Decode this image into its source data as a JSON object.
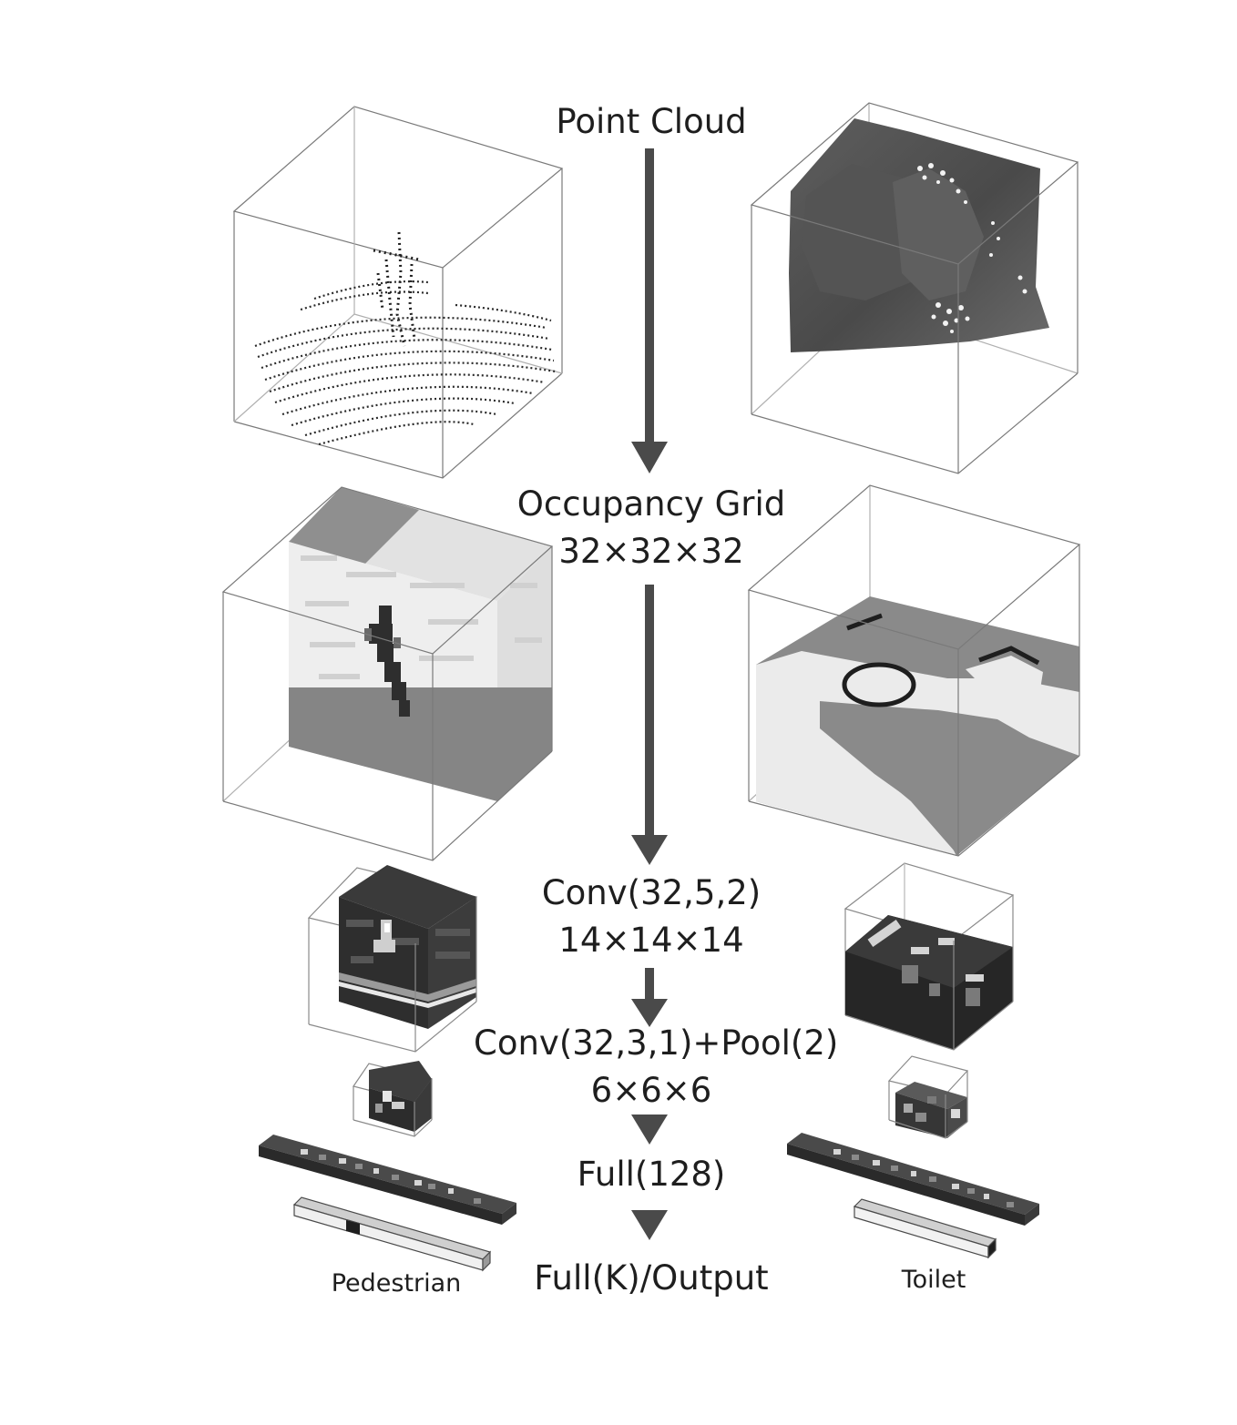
{
  "stages": [
    {
      "id": "point_cloud",
      "lines": [
        "Point Cloud"
      ]
    },
    {
      "id": "occupancy",
      "lines": [
        "Occupancy Grid",
        "32×32×32"
      ]
    },
    {
      "id": "conv1",
      "lines": [
        "Conv(32,5,2)",
        "14×14×14"
      ]
    },
    {
      "id": "conv2",
      "lines": [
        "Conv(32,3,1)+Pool(2)",
        "6×6×6"
      ]
    },
    {
      "id": "full",
      "lines": [
        "Full(128)"
      ]
    },
    {
      "id": "output",
      "lines": [
        "Full(K)/Output"
      ]
    }
  ],
  "examples": {
    "left": {
      "label": "Pedestrian"
    },
    "right": {
      "label": "Toilet"
    }
  },
  "colors": {
    "arrow": "#4a4a4a",
    "cube_edge": "#6a6a6a",
    "voxel_dark": "#2a2a2a",
    "voxel_mid": "#8a8a8a",
    "voxel_light": "#e6e6e6"
  }
}
